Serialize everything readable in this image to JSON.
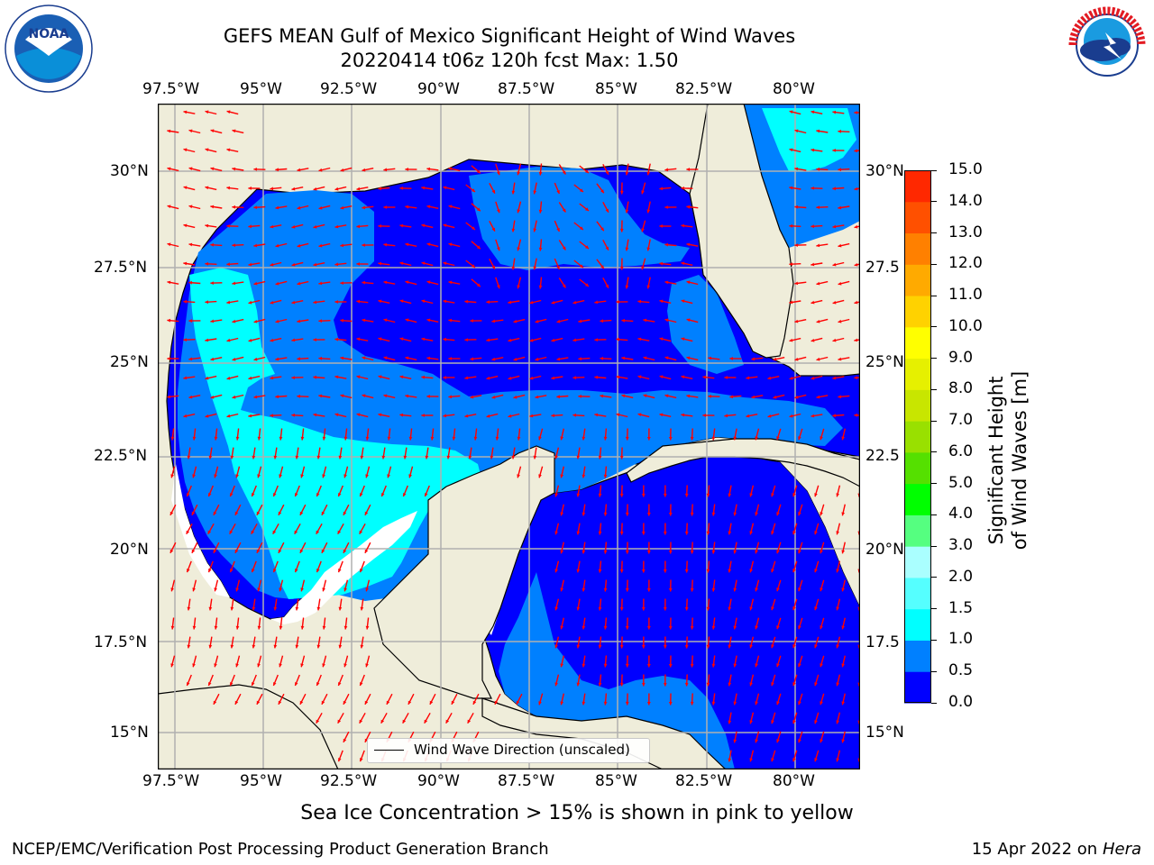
{
  "title_line1": "GEFS MEAN Gulf of Mexico Significant Height of Wind Waves",
  "title_line2": "20220414 t06z 120h fcst   Max: 1.50",
  "lon_labels": [
    "97.5°W",
    "95°W",
    "92.5°W",
    "90°W",
    "87.5°W",
    "85°W",
    "82.5°W",
    "80°W"
  ],
  "lat_labels_left": [
    "30°N",
    "27.5°N",
    "25°N",
    "22.5°N",
    "20°N",
    "17.5°N",
    "15°N"
  ],
  "lat_labels_right": [
    "30°N",
    "27.5",
    "25°N",
    "22.5",
    "20°N",
    "17.5",
    "15°N"
  ],
  "colorbar": {
    "label": "Significant Height of Wind Waves [m]",
    "ticks": [
      "0.0",
      "0.5",
      "1.0",
      "1.5",
      "2.0",
      "3.0",
      "4.0",
      "5.0",
      "6.0",
      "7.0",
      "8.0",
      "9.0",
      "10.0",
      "11.0",
      "12.0",
      "13.0",
      "14.0",
      "15.0"
    ],
    "colors": [
      "#0000ff",
      "#0080ff",
      "#00ffff",
      "#55ffff",
      "#aaffff",
      "#55ff80",
      "#00ff00",
      "#55e000",
      "#99e000",
      "#c8e600",
      "#e6f000",
      "#ffff00",
      "#ffd200",
      "#ffaa00",
      "#ff8000",
      "#ff5000",
      "#ff2800"
    ]
  },
  "legend_label": "Wind Wave Direction (unscaled)",
  "subtitle": "Sea Ice Concentration > 15% is shown in pink to yellow",
  "footer_left": "NCEP/EMC/Verification Post Processing Product Generation Branch",
  "footer_date": "15 Apr 2022 on ",
  "footer_machine": "Hera",
  "colors": {
    "land": "#efedda",
    "arrow": "#ff0000",
    "grid": "#b0b0b0"
  }
}
